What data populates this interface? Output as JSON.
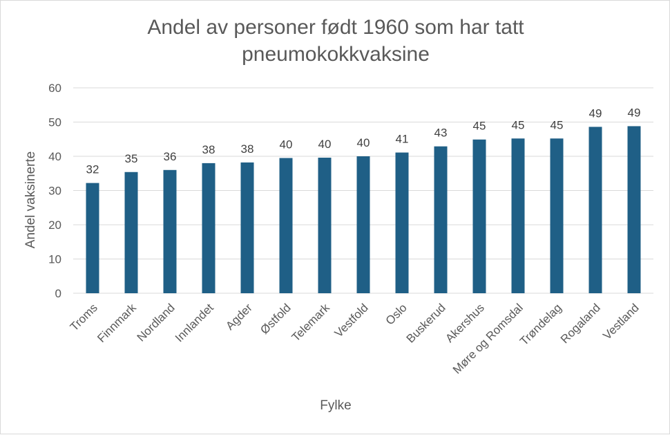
{
  "chart_data": {
    "type": "bar",
    "title": "Andel av personer født 1960 som har tatt pneumokokkvaksine",
    "title_lines": [
      "Andel av personer født 1960 som har tatt",
      "pneumokokkvaksine"
    ],
    "xlabel": "Fylke",
    "ylabel": "Andel vaksinerte",
    "ylim": [
      0,
      60
    ],
    "yticks": [
      0,
      10,
      20,
      30,
      40,
      50,
      60
    ],
    "grid": true,
    "bar_color": "#1f5f86",
    "categories": [
      "Troms",
      "Finnmark",
      "Nordland",
      "Innlandet",
      "Agder",
      "Østfold",
      "Telemark",
      "Vestfold",
      "Oslo",
      "Buskerud",
      "Akershus",
      "Møre og Romsdal",
      "Trøndelag",
      "Rogaland",
      "Vestland"
    ],
    "values": [
      32.2,
      35.4,
      36.0,
      38.0,
      38.2,
      39.5,
      39.6,
      40.0,
      41.1,
      42.9,
      44.9,
      45.2,
      45.2,
      48.6,
      48.8
    ],
    "data_labels": [
      "32",
      "35",
      "36",
      "38",
      "38",
      "40",
      "40",
      "40",
      "41",
      "43",
      "45",
      "45",
      "45",
      "49",
      "49"
    ]
  }
}
